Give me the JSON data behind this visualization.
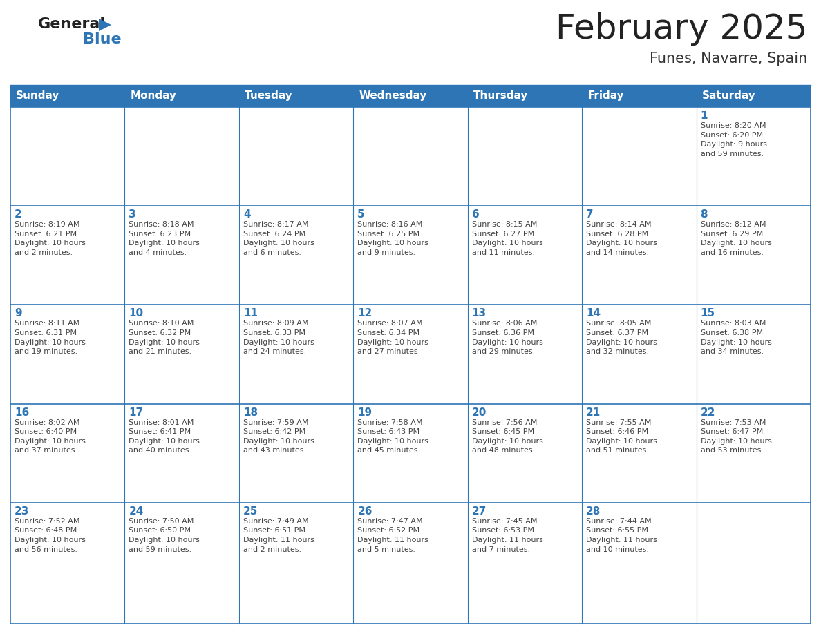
{
  "title": "February 2025",
  "subtitle": "Funes, Navarre, Spain",
  "header_bg": "#2E75B6",
  "header_text_color": "#FFFFFF",
  "cell_bg": "#FFFFFF",
  "border_color": "#2E75B6",
  "day_number_color": "#2E75B6",
  "cell_text_color": "#444444",
  "logo_general_color": "#222222",
  "logo_blue_color": "#2E75B6",
  "days_of_week": [
    "Sunday",
    "Monday",
    "Tuesday",
    "Wednesday",
    "Thursday",
    "Friday",
    "Saturday"
  ],
  "title_fontsize": 36,
  "subtitle_fontsize": 15,
  "header_fontsize": 11,
  "day_num_fontsize": 11,
  "cell_text_fontsize": 8,
  "logo_fontsize": 16,
  "weeks": [
    [
      {
        "day": "",
        "info": ""
      },
      {
        "day": "",
        "info": ""
      },
      {
        "day": "",
        "info": ""
      },
      {
        "day": "",
        "info": ""
      },
      {
        "day": "",
        "info": ""
      },
      {
        "day": "",
        "info": ""
      },
      {
        "day": "1",
        "info": "Sunrise: 8:20 AM\nSunset: 6:20 PM\nDaylight: 9 hours\nand 59 minutes."
      }
    ],
    [
      {
        "day": "2",
        "info": "Sunrise: 8:19 AM\nSunset: 6:21 PM\nDaylight: 10 hours\nand 2 minutes."
      },
      {
        "day": "3",
        "info": "Sunrise: 8:18 AM\nSunset: 6:23 PM\nDaylight: 10 hours\nand 4 minutes."
      },
      {
        "day": "4",
        "info": "Sunrise: 8:17 AM\nSunset: 6:24 PM\nDaylight: 10 hours\nand 6 minutes."
      },
      {
        "day": "5",
        "info": "Sunrise: 8:16 AM\nSunset: 6:25 PM\nDaylight: 10 hours\nand 9 minutes."
      },
      {
        "day": "6",
        "info": "Sunrise: 8:15 AM\nSunset: 6:27 PM\nDaylight: 10 hours\nand 11 minutes."
      },
      {
        "day": "7",
        "info": "Sunrise: 8:14 AM\nSunset: 6:28 PM\nDaylight: 10 hours\nand 14 minutes."
      },
      {
        "day": "8",
        "info": "Sunrise: 8:12 AM\nSunset: 6:29 PM\nDaylight: 10 hours\nand 16 minutes."
      }
    ],
    [
      {
        "day": "9",
        "info": "Sunrise: 8:11 AM\nSunset: 6:31 PM\nDaylight: 10 hours\nand 19 minutes."
      },
      {
        "day": "10",
        "info": "Sunrise: 8:10 AM\nSunset: 6:32 PM\nDaylight: 10 hours\nand 21 minutes."
      },
      {
        "day": "11",
        "info": "Sunrise: 8:09 AM\nSunset: 6:33 PM\nDaylight: 10 hours\nand 24 minutes."
      },
      {
        "day": "12",
        "info": "Sunrise: 8:07 AM\nSunset: 6:34 PM\nDaylight: 10 hours\nand 27 minutes."
      },
      {
        "day": "13",
        "info": "Sunrise: 8:06 AM\nSunset: 6:36 PM\nDaylight: 10 hours\nand 29 minutes."
      },
      {
        "day": "14",
        "info": "Sunrise: 8:05 AM\nSunset: 6:37 PM\nDaylight: 10 hours\nand 32 minutes."
      },
      {
        "day": "15",
        "info": "Sunrise: 8:03 AM\nSunset: 6:38 PM\nDaylight: 10 hours\nand 34 minutes."
      }
    ],
    [
      {
        "day": "16",
        "info": "Sunrise: 8:02 AM\nSunset: 6:40 PM\nDaylight: 10 hours\nand 37 minutes."
      },
      {
        "day": "17",
        "info": "Sunrise: 8:01 AM\nSunset: 6:41 PM\nDaylight: 10 hours\nand 40 minutes."
      },
      {
        "day": "18",
        "info": "Sunrise: 7:59 AM\nSunset: 6:42 PM\nDaylight: 10 hours\nand 43 minutes."
      },
      {
        "day": "19",
        "info": "Sunrise: 7:58 AM\nSunset: 6:43 PM\nDaylight: 10 hours\nand 45 minutes."
      },
      {
        "day": "20",
        "info": "Sunrise: 7:56 AM\nSunset: 6:45 PM\nDaylight: 10 hours\nand 48 minutes."
      },
      {
        "day": "21",
        "info": "Sunrise: 7:55 AM\nSunset: 6:46 PM\nDaylight: 10 hours\nand 51 minutes."
      },
      {
        "day": "22",
        "info": "Sunrise: 7:53 AM\nSunset: 6:47 PM\nDaylight: 10 hours\nand 53 minutes."
      }
    ],
    [
      {
        "day": "23",
        "info": "Sunrise: 7:52 AM\nSunset: 6:48 PM\nDaylight: 10 hours\nand 56 minutes."
      },
      {
        "day": "24",
        "info": "Sunrise: 7:50 AM\nSunset: 6:50 PM\nDaylight: 10 hours\nand 59 minutes."
      },
      {
        "day": "25",
        "info": "Sunrise: 7:49 AM\nSunset: 6:51 PM\nDaylight: 11 hours\nand 2 minutes."
      },
      {
        "day": "26",
        "info": "Sunrise: 7:47 AM\nSunset: 6:52 PM\nDaylight: 11 hours\nand 5 minutes."
      },
      {
        "day": "27",
        "info": "Sunrise: 7:45 AM\nSunset: 6:53 PM\nDaylight: 11 hours\nand 7 minutes."
      },
      {
        "day": "28",
        "info": "Sunrise: 7:44 AM\nSunset: 6:55 PM\nDaylight: 11 hours\nand 10 minutes."
      },
      {
        "day": "",
        "info": ""
      }
    ]
  ]
}
